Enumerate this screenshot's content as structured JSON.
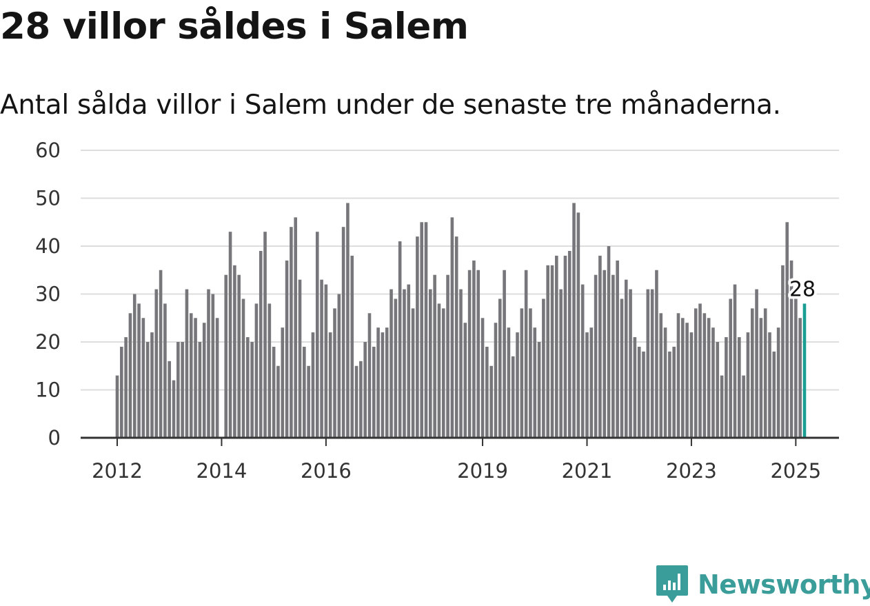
{
  "title": "28 villor såldes i Salem",
  "subtitle": "Antal sålda villor i Salem under de senaste tre månaderna.",
  "brand": {
    "name": "Newsworthy",
    "color": "#3a9d99",
    "icon": "newsworthy-logo-icon"
  },
  "colors": {
    "bar": "#76767b",
    "highlight": "#1a9e94",
    "grid": "#dddddd",
    "axis": "#333333"
  },
  "chart_data": {
    "type": "bar",
    "title": "28 villor såldes i Salem",
    "subtitle": "Antal sålda villor i Salem under de senaste tre månaderna.",
    "xlabel": "",
    "ylabel": "",
    "ylim": [
      0,
      60
    ],
    "yticks": [
      0,
      10,
      20,
      30,
      40,
      50,
      60
    ],
    "grid": true,
    "xticks": [
      {
        "label": "2012",
        "month": "2012-01"
      },
      {
        "label": "2014",
        "month": "2014-01"
      },
      {
        "label": "2016",
        "month": "2016-01"
      },
      {
        "label": "2019",
        "month": "2019-01"
      },
      {
        "label": "2021",
        "month": "2021-01"
      },
      {
        "label": "2023",
        "month": "2023-01"
      },
      {
        "label": "2025",
        "month": "2025-01"
      }
    ],
    "start_month": "2012-01",
    "series": [
      {
        "values": [
          13,
          19,
          21,
          26,
          30,
          28,
          25,
          20,
          22,
          31,
          35,
          28,
          16,
          12,
          20,
          20,
          31,
          26,
          25,
          20,
          24,
          31,
          30,
          25,
          null,
          34,
          43,
          36,
          34,
          29,
          21,
          20,
          28,
          39,
          43,
          28,
          19,
          15,
          23,
          37,
          44,
          46,
          33,
          19,
          15,
          22,
          43,
          33,
          32,
          22,
          27,
          30,
          44,
          49,
          38,
          15,
          16,
          20,
          26,
          19,
          23,
          22,
          23,
          31,
          29,
          41,
          31,
          32,
          27,
          42,
          45,
          45,
          31,
          34,
          28,
          27,
          34,
          46,
          42,
          31,
          24,
          35,
          37,
          35,
          25,
          19,
          15,
          24,
          29,
          35,
          23,
          17,
          22,
          27,
          35,
          27,
          23,
          20,
          29,
          36,
          36,
          38,
          31,
          38,
          39,
          49,
          47,
          32,
          22,
          23,
          34,
          38,
          35,
          40,
          34,
          37,
          29,
          33,
          31,
          21,
          19,
          18,
          31,
          31,
          35,
          26,
          23,
          18,
          19,
          26,
          25,
          24,
          22,
          27,
          28,
          26,
          25,
          23,
          20,
          13,
          21,
          29,
          32,
          21,
          13,
          22,
          27,
          31,
          25,
          27,
          22,
          18,
          23,
          36,
          45,
          37,
          29,
          25,
          28
        ]
      }
    ],
    "highlight": {
      "month": "2025-03",
      "value": 28,
      "label": "28"
    }
  }
}
